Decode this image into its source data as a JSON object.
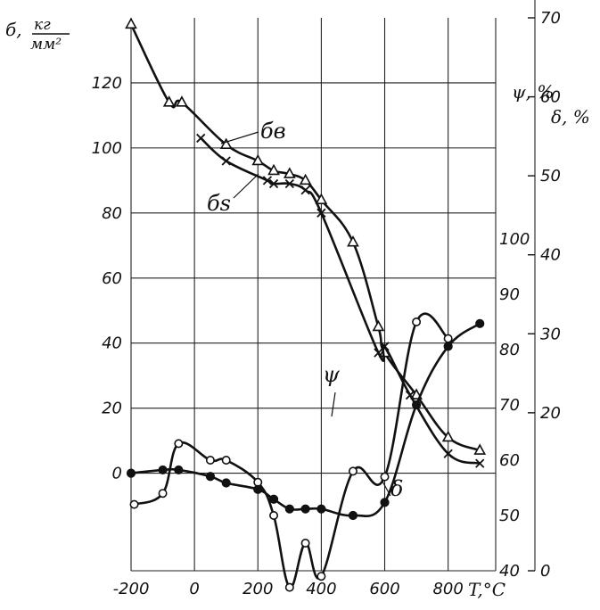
{
  "chart_data": {
    "type": "line",
    "title": "",
    "xlabel": "T,°C",
    "left_axis": {
      "label_main": "б,",
      "label_num": "кг",
      "label_den": "мм²",
      "ylim": [
        -30,
        140
      ],
      "ticks": [
        "0",
        "20",
        "40",
        "60",
        "80",
        "100",
        "120"
      ],
      "tick_values": [
        0,
        20,
        40,
        60,
        80,
        100,
        120
      ]
    },
    "psi_axis": {
      "label": "ψ, %",
      "ylim": [
        40,
        140
      ],
      "ticks": [
        "40",
        "50",
        "60",
        "70",
        "80",
        "90",
        "100"
      ],
      "tick_values": [
        40,
        50,
        60,
        70,
        80,
        90,
        100
      ]
    },
    "delta_axis": {
      "label": "δ, %",
      "ylim": [
        0,
        70
      ],
      "ticks": [
        "0",
        "20",
        "30",
        "40",
        "50",
        "60",
        "70"
      ],
      "tick_values": [
        0,
        20,
        30,
        40,
        50,
        60,
        70
      ]
    },
    "x_axis": {
      "xlim": [
        -200,
        950
      ],
      "ticks": [
        "-200",
        "0",
        "200",
        "400",
        "600",
        "800"
      ],
      "tick_values": [
        -200,
        0,
        200,
        400,
        600,
        800
      ]
    },
    "grid": true,
    "series": [
      {
        "name": "бв",
        "axis": "left",
        "marker": "triangle",
        "x": [
          -200,
          -80,
          -40,
          100,
          200,
          250,
          300,
          350,
          400,
          500,
          580,
          600,
          700,
          800,
          900
        ],
        "y": [
          138,
          114,
          114,
          101,
          96,
          93,
          92,
          90,
          84,
          71,
          45,
          37,
          24,
          11,
          7
        ]
      },
      {
        "name": "бs",
        "axis": "left",
        "marker": "cross",
        "x": [
          20,
          100,
          230,
          250,
          300,
          350,
          400,
          580,
          600,
          680,
          800,
          900
        ],
        "y": [
          103,
          96,
          90,
          89,
          89,
          87,
          80,
          37,
          39,
          24,
          6,
          3
        ]
      },
      {
        "name": "ψ",
        "axis": "psi",
        "marker": "open-circle",
        "x": [
          -190,
          -100,
          -50,
          50,
          100,
          200,
          250,
          300,
          350,
          400,
          500,
          600,
          700,
          800
        ],
        "y": [
          52,
          54,
          63,
          60,
          60,
          56,
          50,
          37,
          45,
          39,
          58,
          57,
          85,
          82
        ]
      },
      {
        "name": "δ",
        "axis": "left",
        "marker": "filled-circle",
        "x": [
          -200,
          -100,
          -50,
          50,
          100,
          200,
          250,
          300,
          350,
          400,
          500,
          600,
          700,
          800,
          900
        ],
        "y": [
          0,
          1,
          1,
          -1,
          -3,
          -5,
          -8,
          -11,
          -11,
          -11,
          -13,
          -9,
          21,
          39,
          46
        ]
      }
    ],
    "annotations": [
      {
        "text": "бв",
        "points_to": "бв"
      },
      {
        "text": "бs",
        "points_to": "бs"
      },
      {
        "text": "ψ",
        "points_to": "ψ"
      },
      {
        "text": "δ",
        "points_to": "δ"
      }
    ]
  }
}
